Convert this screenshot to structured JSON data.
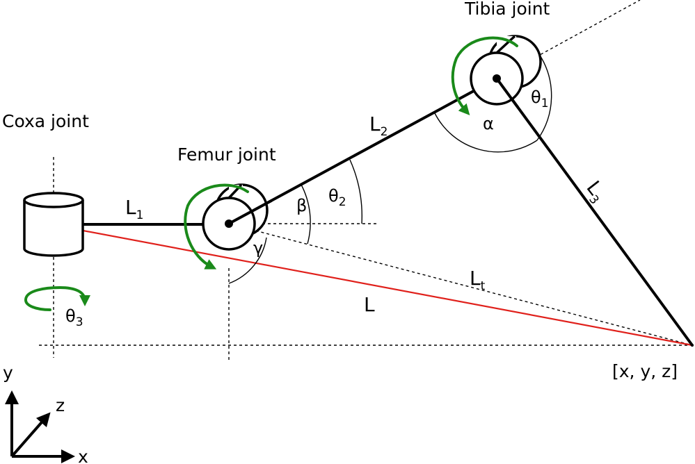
{
  "labels": {
    "coxa": "Coxa joint",
    "femur": "Femur joint",
    "tibia": "Tibia joint",
    "target": "[x, y, z]"
  },
  "symbols": {
    "L1": {
      "base": "L",
      "sub": "1"
    },
    "L2": {
      "base": "L",
      "sub": "2"
    },
    "L3": {
      "base": "L",
      "sub": "3"
    },
    "Lt": {
      "base": "L",
      "sub": "t"
    },
    "L": "L",
    "theta1": {
      "base": "θ",
      "sub": "1"
    },
    "theta2": {
      "base": "θ",
      "sub": "2"
    },
    "theta3": {
      "base": "θ",
      "sub": "3"
    },
    "alpha": "α",
    "beta": "β",
    "gamma": "γ"
  },
  "axes": {
    "x": "x",
    "y": "y",
    "z": "z"
  },
  "colors": {
    "link": "#000000",
    "rotation": "#1a8a1a",
    "distance_L": "#e0201b"
  }
}
